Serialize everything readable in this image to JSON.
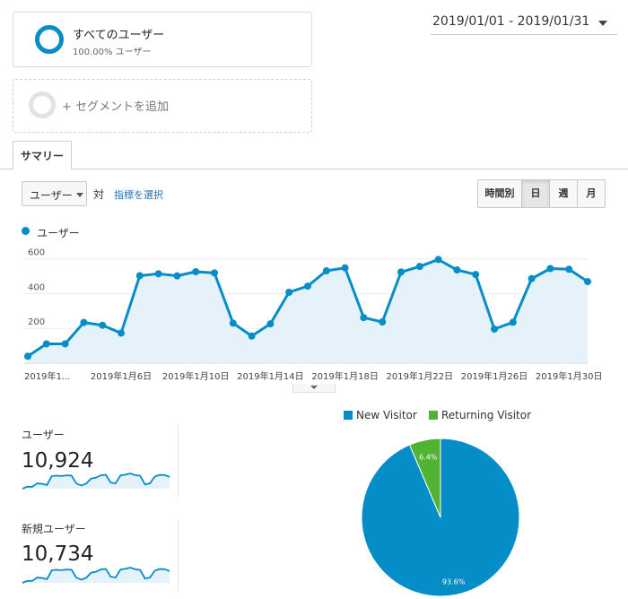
{
  "segments": {
    "active": {
      "title": "すべてのユーザー",
      "subtitle": "100.00% ユーザー"
    },
    "add_label": "+ セグメントを追加"
  },
  "date_range": "2019/01/01 - 2019/01/31",
  "tabs": [
    {
      "label": "サマリー",
      "active": true
    }
  ],
  "metric_selector": {
    "selected": "ユーザー",
    "vs_label": "対",
    "pick_metric_link": "指標を選択"
  },
  "granularity": [
    {
      "label": "時間別",
      "active": false
    },
    {
      "label": "日",
      "active": true
    },
    {
      "label": "週",
      "active": false
    },
    {
      "label": "月",
      "active": false
    }
  ],
  "colors": {
    "accent": "#058dc7",
    "returning": "#50b432",
    "area_fill": "#e6f2f9"
  },
  "chart_data": [
    {
      "type": "area",
      "series": [
        {
          "name": "ユーザー",
          "values": [
            40,
            111,
            111,
            234,
            218,
            173,
            503,
            514,
            502,
            526,
            519,
            230,
            156,
            226,
            408,
            443,
            531,
            548,
            262,
            237,
            524,
            556,
            596,
            536,
            510,
            196,
            235,
            486,
            544,
            540,
            469
          ]
        }
      ],
      "x_dates": [
        "2019/01/01",
        "2019/01/02",
        "2019/01/03",
        "2019/01/04",
        "2019/01/05",
        "2019/01/06",
        "2019/01/07",
        "2019/01/08",
        "2019/01/09",
        "2019/01/10",
        "2019/01/11",
        "2019/01/12",
        "2019/01/13",
        "2019/01/14",
        "2019/01/15",
        "2019/01/16",
        "2019/01/17",
        "2019/01/18",
        "2019/01/19",
        "2019/01/20",
        "2019/01/21",
        "2019/01/22",
        "2019/01/23",
        "2019/01/24",
        "2019/01/25",
        "2019/01/26",
        "2019/01/27",
        "2019/01/28",
        "2019/01/29",
        "2019/01/30",
        "2019/01/31"
      ],
      "y_ticks": [
        200,
        400,
        600
      ],
      "ylim": [
        0,
        660
      ],
      "x_tick_labels": [
        {
          "day": 1,
          "label": "2019年1..."
        },
        {
          "day": 6,
          "label": "2019年1月6日"
        },
        {
          "day": 10,
          "label": "2019年1月10日"
        },
        {
          "day": 14,
          "label": "2019年1月14日"
        },
        {
          "day": 18,
          "label": "2019年1月18日"
        },
        {
          "day": 22,
          "label": "2019年1月22日"
        },
        {
          "day": 26,
          "label": "2019年1月26日"
        },
        {
          "day": 30,
          "label": "2019年1月30日"
        }
      ],
      "grid": true
    },
    {
      "type": "pie",
      "slices": [
        {
          "name": "New Visitor",
          "value": 93.6,
          "label": "93.6%",
          "color": "#058dc7"
        },
        {
          "name": "Returning Visitor",
          "value": 6.4,
          "label": "6.4%",
          "color": "#50b432"
        }
      ],
      "legend": "top"
    }
  ],
  "sparklines": [
    {
      "label": "ユーザー",
      "value": "10,924"
    },
    {
      "label": "新規ユーザー",
      "value": "10,734"
    }
  ]
}
